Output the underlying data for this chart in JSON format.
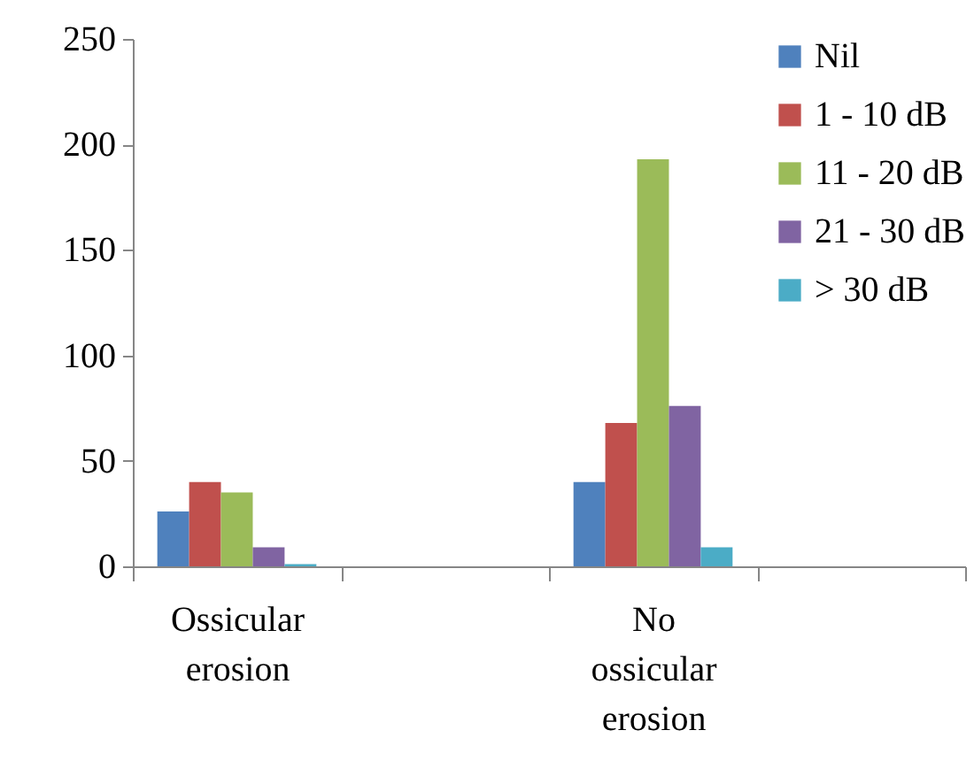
{
  "chart_data": {
    "type": "bar",
    "categories": [
      "Ossicular erosion",
      null,
      "No ossicular erosion",
      null
    ],
    "series": [
      {
        "name": "Nil",
        "color": "#4f81bd",
        "values": [
          26,
          null,
          40,
          null
        ]
      },
      {
        "name": "1 - 10 dB",
        "color": "#c0504d",
        "values": [
          40,
          null,
          68,
          null
        ]
      },
      {
        "name": "11 - 20 dB",
        "color": "#9bbb59",
        "values": [
          35,
          null,
          193,
          null
        ]
      },
      {
        "name": "21 - 30 dB",
        "color": "#8064a2",
        "values": [
          9,
          null,
          76,
          null
        ]
      },
      {
        "name": "> 30 dB",
        "color": "#4bacc6",
        "values": [
          1,
          null,
          9,
          null
        ]
      }
    ],
    "ylim": [
      0,
      250
    ],
    "yticks": [
      0,
      50,
      100,
      150,
      200,
      250
    ],
    "grid": false,
    "legend": "top right"
  }
}
